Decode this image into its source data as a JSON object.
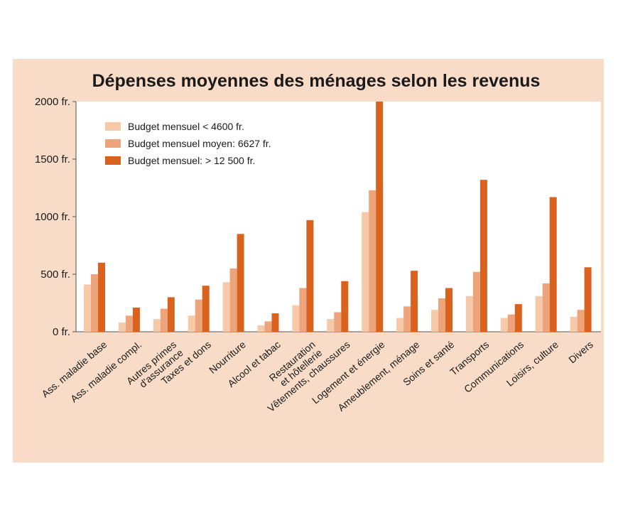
{
  "chart_data": {
    "type": "bar",
    "title": "Dépenses moyennes des ménages selon les revenus",
    "xlabel": "",
    "ylabel": "",
    "ylim": [
      0,
      2000
    ],
    "yticks": [
      {
        "value": 0,
        "label": "0 fr."
      },
      {
        "value": 500,
        "label": "500 fr."
      },
      {
        "value": 1000,
        "label": "1000 fr."
      },
      {
        "value": 1500,
        "label": "1500 fr."
      },
      {
        "value": 2000,
        "label": "2000 fr."
      }
    ],
    "categories": [
      [
        "Ass. maladie base"
      ],
      [
        "Ass. maladie compl."
      ],
      [
        "Autres primes",
        "d'assurance"
      ],
      [
        "Taxes et dons"
      ],
      [
        "Nourriture"
      ],
      [
        "Alcool et tabac"
      ],
      [
        "Restauration",
        "et hôtellerie"
      ],
      [
        "Vêtements, chaussures"
      ],
      [
        "Logement et énergie"
      ],
      [
        "Ameublement, ménage"
      ],
      [
        "Soins et santé"
      ],
      [
        "Transports"
      ],
      [
        "Communications"
      ],
      [
        "Loisirs, culture"
      ],
      [
        "Divers"
      ]
    ],
    "series": [
      {
        "name": "Budget mensuel < 4600 fr.",
        "color": "#f6c9a8",
        "values": [
          410,
          80,
          110,
          140,
          430,
          55,
          230,
          110,
          1040,
          120,
          190,
          310,
          120,
          310,
          130
        ]
      },
      {
        "name": "Budget mensuel moyen: 6627 fr.",
        "color": "#eea47a",
        "values": [
          500,
          140,
          200,
          280,
          550,
          90,
          380,
          170,
          1230,
          220,
          290,
          520,
          150,
          420,
          190
        ]
      },
      {
        "name": "Budget mensuel: > 12 500 fr.",
        "color": "#d9621e",
        "values": [
          600,
          210,
          300,
          400,
          850,
          160,
          970,
          440,
          2000,
          530,
          380,
          1320,
          240,
          1170,
          560
        ]
      }
    ],
    "legend_position": "top-left",
    "grid": false
  }
}
